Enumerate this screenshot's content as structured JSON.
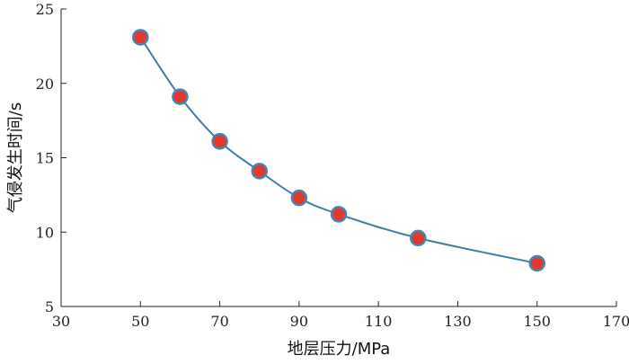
{
  "chart_data": {
    "type": "line",
    "xlabel": "地层压力/MPa",
    "ylabel": "气侵发生时间/s",
    "xlim": [
      30,
      170
    ],
    "ylim": [
      5,
      25
    ],
    "xticks": [
      30,
      50,
      70,
      90,
      110,
      130,
      150,
      170
    ],
    "yticks": [
      5,
      10,
      15,
      20,
      25
    ],
    "grid": false,
    "series": [
      {
        "x": [
          50,
          60,
          70,
          80,
          90,
          100,
          120,
          150
        ],
        "y": [
          23.1,
          19.1,
          16.1,
          14.1,
          12.3,
          11.2,
          9.6,
          7.9
        ]
      }
    ],
    "colors": {
      "line": "#3b7ea6",
      "marker_fill": "#e03a2e",
      "marker_edge": "#4a82b0",
      "axis": "#222222"
    }
  }
}
